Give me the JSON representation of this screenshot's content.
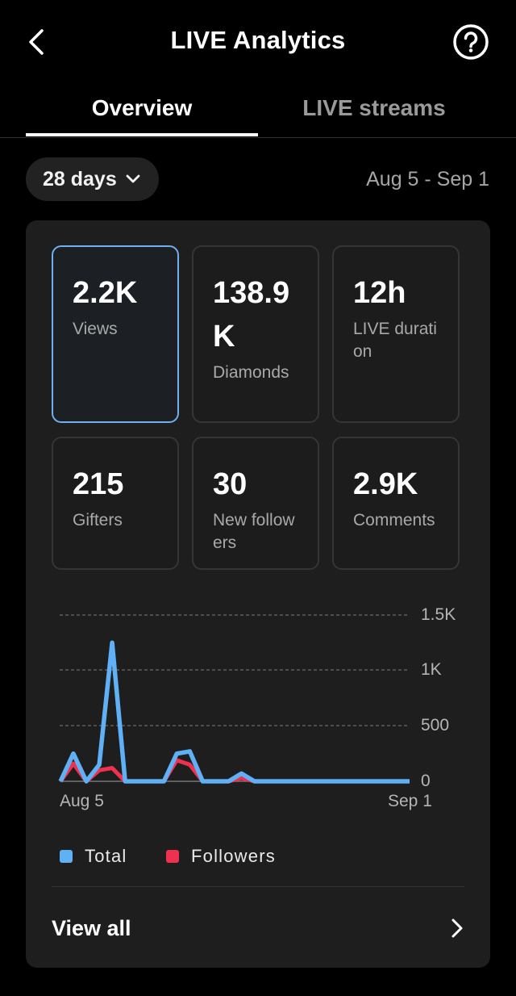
{
  "header": {
    "title": "LIVE Analytics",
    "back_icon": "chevron-left-icon",
    "help_icon": "question-circle-icon"
  },
  "tabs": [
    {
      "label": "Overview",
      "active": true
    },
    {
      "label": "LIVE streams",
      "active": false
    }
  ],
  "filter": {
    "period": "28 days",
    "range": "Aug 5 - Sep 1"
  },
  "metrics": [
    {
      "value": "2.2K",
      "label": "Views",
      "active": true
    },
    {
      "value": "138.9K",
      "label": "Diamonds",
      "active": false
    },
    {
      "value": "12h",
      "label": "LIVE duration",
      "active": false
    },
    {
      "value": "215",
      "label": "Gifters",
      "active": false
    },
    {
      "value": "30",
      "label": "New followers",
      "active": false
    },
    {
      "value": "2.9K",
      "label": "Comments",
      "active": false
    }
  ],
  "chart_data": {
    "type": "line",
    "title": "",
    "xlabel": "",
    "ylabel": "",
    "x_start_label": "Aug 5",
    "x_end_label": "Sep 1",
    "yticks": [
      "0",
      "500",
      "1K",
      "1.5K"
    ],
    "ylim": [
      0,
      1500
    ],
    "grid": true,
    "legend_position": "bottom",
    "series": [
      {
        "name": "Total",
        "color": "#5fb0f5",
        "values": [
          0,
          250,
          0,
          150,
          1250,
          0,
          0,
          0,
          0,
          250,
          270,
          0,
          0,
          0,
          70,
          0,
          0,
          0,
          0,
          0,
          0,
          0,
          0,
          0,
          0,
          0,
          0,
          0
        ]
      },
      {
        "name": "Followers",
        "color": "#f0304f",
        "values": [
          0,
          160,
          0,
          100,
          120,
          0,
          0,
          0,
          0,
          190,
          150,
          0,
          0,
          0,
          30,
          0,
          0,
          0,
          0,
          0,
          0,
          0,
          0,
          0,
          0,
          0,
          0,
          0
        ]
      }
    ]
  },
  "legend": [
    {
      "label": "Total",
      "color": "#5fb0f5"
    },
    {
      "label": "Followers",
      "color": "#f0304f"
    }
  ],
  "footer": {
    "view_all": "View all"
  }
}
